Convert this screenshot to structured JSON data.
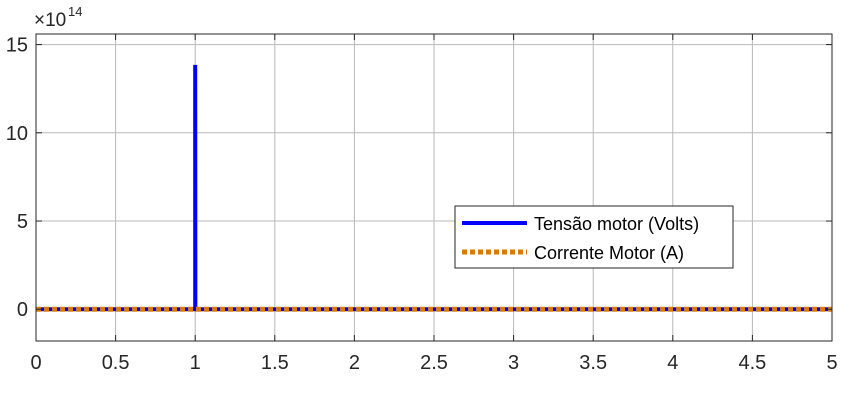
{
  "chart_data": {
    "type": "line",
    "title": "",
    "xlabel": "",
    "ylabel": "",
    "y_exponent_label": {
      "base": "×10",
      "exponent": "14"
    },
    "xlim": [
      0,
      5
    ],
    "ylim": [
      -1.8,
      15.6
    ],
    "ylim_units_note": "×10^14",
    "grid": true,
    "legend_position": "center-right",
    "xticks": [
      {
        "value": 0,
        "label": "0"
      },
      {
        "value": 0.5,
        "label": "0.5"
      },
      {
        "value": 1,
        "label": "1"
      },
      {
        "value": 1.5,
        "label": "1.5"
      },
      {
        "value": 2,
        "label": "2"
      },
      {
        "value": 2.5,
        "label": "2.5"
      },
      {
        "value": 3,
        "label": "3"
      },
      {
        "value": 3.5,
        "label": "3.5"
      },
      {
        "value": 4,
        "label": "4"
      },
      {
        "value": 4.5,
        "label": "4.5"
      },
      {
        "value": 5,
        "label": "5"
      }
    ],
    "yticks": [
      {
        "value": 0,
        "label": "0"
      },
      {
        "value": 5,
        "label": "5"
      },
      {
        "value": 10,
        "label": "10"
      },
      {
        "value": 15,
        "label": "15"
      }
    ],
    "series": [
      {
        "name": "Tensão motor (Volts)",
        "color": "#0000ff",
        "style": "solid",
        "x": [
          0,
          0.999,
          1.0,
          1.0,
          1.001,
          5
        ],
        "y": [
          0,
          0,
          0,
          13.85,
          0,
          0
        ]
      },
      {
        "name": "Corrente Motor (A)",
        "color": "#d97b00",
        "style": "dotted",
        "x": [
          0,
          5
        ],
        "y": [
          0,
          0
        ]
      }
    ]
  }
}
